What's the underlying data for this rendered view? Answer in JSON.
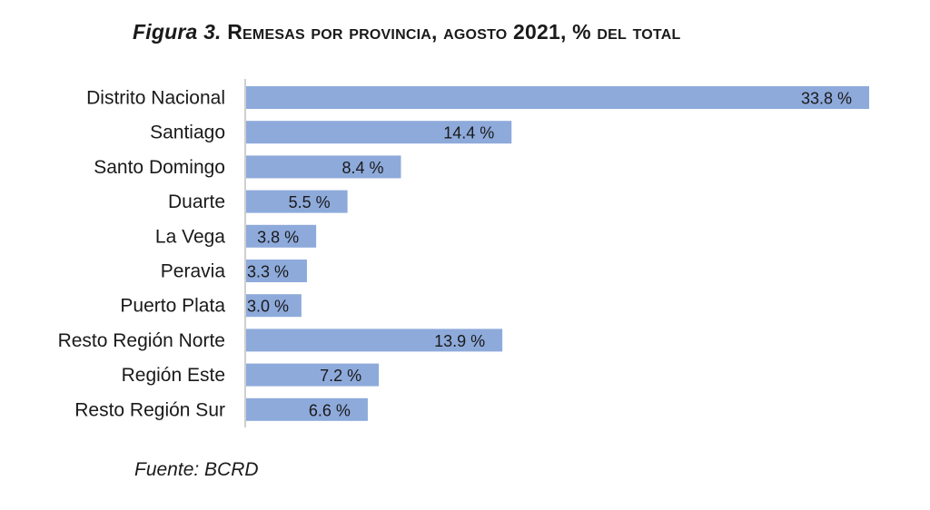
{
  "title_prefix": "Figura 3.",
  "title_main": "Remesas por provincia, agosto 2021, % del total",
  "source": "Fuente: BCRD",
  "colors": {
    "bar": "#8eaadb",
    "axis": "#bfbfbf",
    "text": "#1a1a1a"
  },
  "chart_data": {
    "type": "bar",
    "orientation": "horizontal",
    "title": "Figura 3. Remesas por provincia, agosto 2021, % del total",
    "categories": [
      "Distrito Nacional",
      "Santiago",
      "Santo Domingo",
      "Duarte",
      "La Vega",
      "Peravia",
      "Puerto Plata",
      "Resto Región Norte",
      "Región Este",
      "Resto Región Sur"
    ],
    "values": [
      33.8,
      14.4,
      8.4,
      5.5,
      3.8,
      3.3,
      3.0,
      13.9,
      7.2,
      6.6
    ],
    "value_labels": [
      "33.8 %",
      "14.4 %",
      "8.4 %",
      "5.5 %",
      "3.8 %",
      "3.3 %",
      "3.0 %",
      "13.9 %",
      "7.2 %",
      "6.6 %"
    ],
    "xlim": [
      0,
      33.8
    ],
    "grid": false,
    "legend": "none"
  }
}
